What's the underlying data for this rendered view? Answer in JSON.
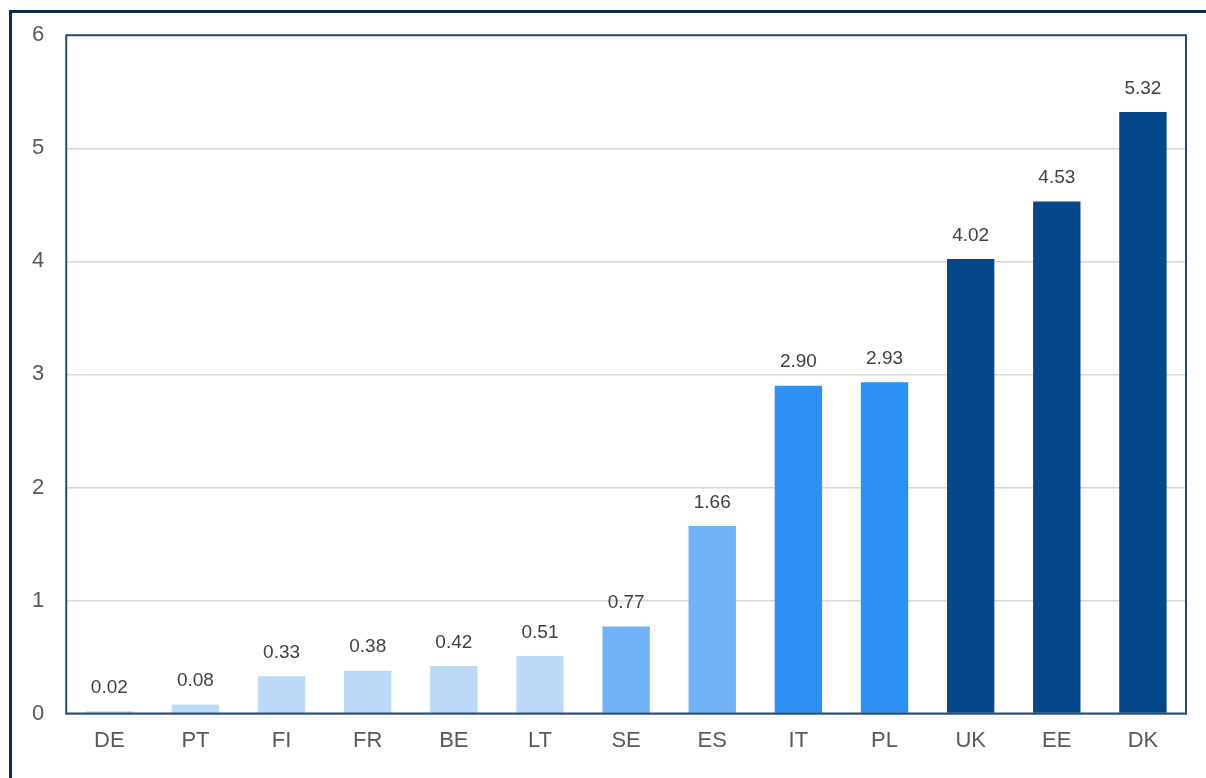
{
  "chart_data": {
    "type": "bar",
    "categories": [
      "DE",
      "PT",
      "FI",
      "FR",
      "BE",
      "LT",
      "SE",
      "ES",
      "IT",
      "PL",
      "UK",
      "EE",
      "DK"
    ],
    "values": [
      0.02,
      0.08,
      0.33,
      0.38,
      0.42,
      0.51,
      0.77,
      1.66,
      2.9,
      2.93,
      4.02,
      4.53,
      5.32
    ],
    "colors": [
      "#bdd9f8",
      "#bdd9f8",
      "#bdd9f8",
      "#bdd9f8",
      "#bdd9f8",
      "#bdd9f8",
      "#70b3f8",
      "#70b3f8",
      "#2e8ff5",
      "#2e8ff5",
      "#04478b",
      "#04478b",
      "#04478b"
    ],
    "value_labels": [
      "0.02",
      "0.08",
      "0.33",
      "0.38",
      "0.42",
      "0.51",
      "0.77",
      "1.66",
      "2.90",
      "2.93",
      "4.02",
      "4.53",
      "5.32"
    ],
    "ylim": [
      0,
      6
    ],
    "yticks": [
      0,
      1,
      2,
      3,
      4,
      5,
      6
    ],
    "grid": "y",
    "legend": false
  }
}
